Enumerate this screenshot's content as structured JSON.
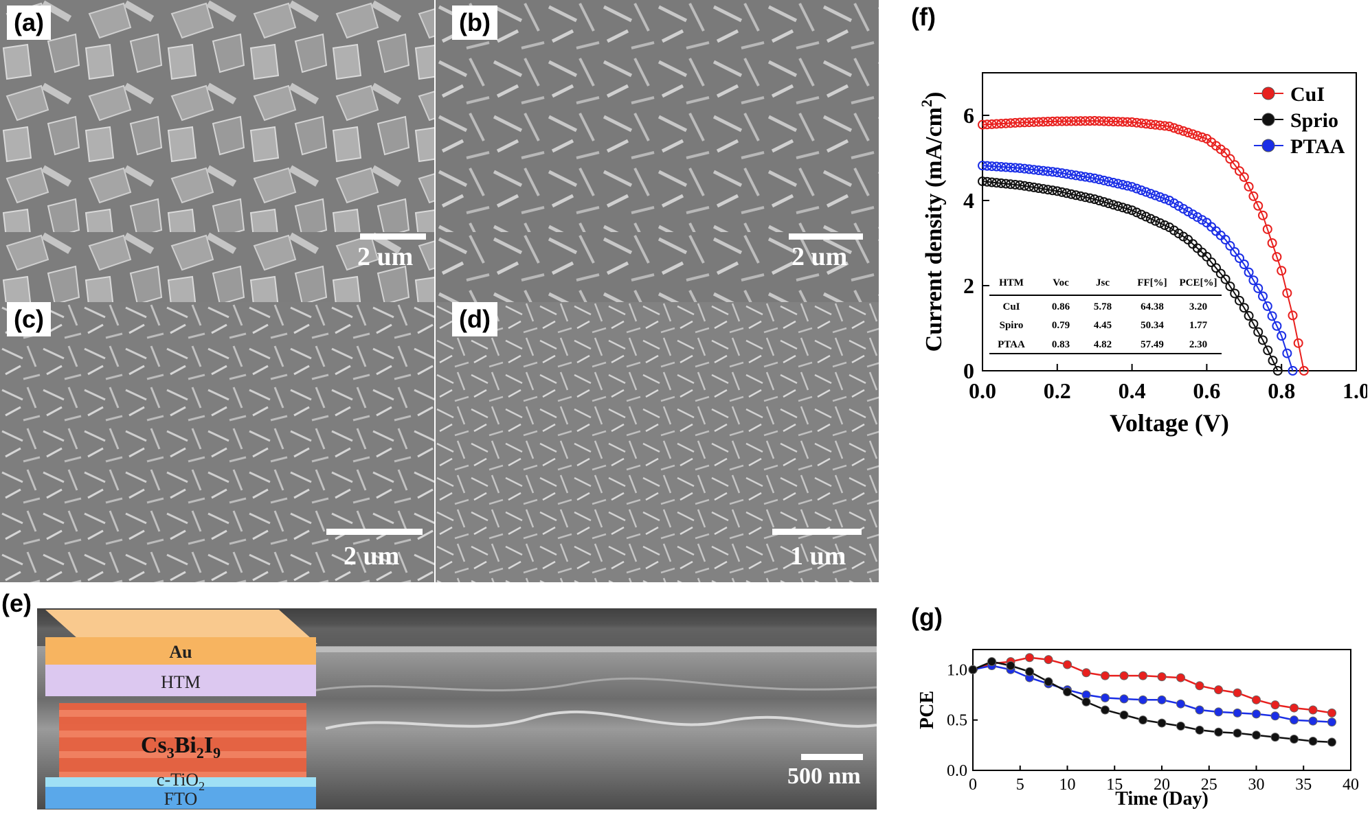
{
  "panels": {
    "a": {
      "label": "(a)",
      "scale": "2 um"
    },
    "b": {
      "label": "(b)",
      "scale": "2 um"
    },
    "c": {
      "label": "(c)",
      "scale": "2 um"
    },
    "d": {
      "label": "(d)",
      "scale": "1 um"
    },
    "e": {
      "label": "(e)",
      "scale": "500 nm",
      "layers": {
        "au": "Au",
        "htm": "HTM",
        "absorber_main": "Cs",
        "absorber_s1": "3",
        "absorber_mid": "Bi",
        "absorber_s2": "2",
        "absorber_end": "I",
        "absorber_s3": "9",
        "ctio2_main": "c-TiO",
        "ctio2_sub": "2",
        "fto": "FTO"
      }
    },
    "f": {
      "label": "(f)"
    },
    "g": {
      "label": "(g)"
    }
  },
  "colors": {
    "cui": "#e8201e",
    "spiro": "#111111",
    "ptaa": "#1a2ee6",
    "au": "#f7b460",
    "htm": "#dcc8f0",
    "absorber": "#e9613f",
    "ctio2": "#9fe0f5",
    "fto": "#5aa8ea"
  },
  "chart_data": [
    {
      "id": "f",
      "type": "line",
      "xlabel": "Voltage (V)",
      "ylabel_main": "Current density (mA/cm",
      "ylabel_sup": "2",
      "ylabel_end": ")",
      "xlim": [
        0,
        1.0
      ],
      "ylim": [
        0,
        7
      ],
      "xticks": [
        "0.0",
        "0.2",
        "0.4",
        "0.6",
        "0.8",
        "1.0"
      ],
      "yticks": [
        "0",
        "2",
        "4",
        "6"
      ],
      "legend_position": "top-right",
      "series": [
        {
          "name": "CuI",
          "color": "#e8201e",
          "jsc": 5.78,
          "voc": 0.86,
          "x": [
            0,
            0.1,
            0.2,
            0.3,
            0.4,
            0.5,
            0.6,
            0.65,
            0.7,
            0.75,
            0.8,
            0.83,
            0.86
          ],
          "y": [
            5.78,
            5.83,
            5.86,
            5.87,
            5.84,
            5.74,
            5.45,
            5.12,
            4.55,
            3.65,
            2.35,
            1.3,
            0
          ]
        },
        {
          "name": "Sprio",
          "color": "#111111",
          "jsc": 4.45,
          "voc": 0.79,
          "x": [
            0,
            0.1,
            0.2,
            0.3,
            0.4,
            0.5,
            0.55,
            0.6,
            0.65,
            0.7,
            0.75,
            0.79
          ],
          "y": [
            4.45,
            4.36,
            4.22,
            4.03,
            3.77,
            3.37,
            3.08,
            2.68,
            2.15,
            1.48,
            0.72,
            0
          ]
        },
        {
          "name": "PTAA",
          "color": "#1a2ee6",
          "jsc": 4.82,
          "voc": 0.83,
          "x": [
            0,
            0.1,
            0.2,
            0.3,
            0.4,
            0.5,
            0.6,
            0.65,
            0.7,
            0.75,
            0.8,
            0.83
          ],
          "y": [
            4.82,
            4.76,
            4.66,
            4.52,
            4.32,
            4.0,
            3.48,
            3.08,
            2.5,
            1.75,
            0.82,
            0
          ]
        }
      ],
      "table": {
        "headers": [
          "HTM",
          "Voc",
          "Jsc",
          "FF[%]",
          "PCE[%]"
        ],
        "rows": [
          [
            "CuI",
            "0.86",
            "5.78",
            "64.38",
            "3.20"
          ],
          [
            "Spiro",
            "0.79",
            "4.45",
            "50.34",
            "1.77"
          ],
          [
            "PTAA",
            "0.83",
            "4.82",
            "57.49",
            "2.30"
          ]
        ]
      }
    },
    {
      "id": "g",
      "type": "line",
      "xlabel": "Time (Day)",
      "ylabel": "PCE",
      "xlim": [
        0,
        40
      ],
      "ylim": [
        0,
        1.2
      ],
      "xticks": [
        "0",
        "5",
        "10",
        "15",
        "20",
        "25",
        "30",
        "35",
        "40"
      ],
      "yticks": [
        "0.0",
        "0.5",
        "1.0"
      ],
      "series": [
        {
          "color": "#e8201e",
          "x": [
            0,
            2,
            4,
            6,
            8,
            10,
            12,
            14,
            16,
            18,
            20,
            22,
            24,
            26,
            28,
            30,
            32,
            34,
            36,
            38
          ],
          "y": [
            1.0,
            1.06,
            1.08,
            1.12,
            1.1,
            1.05,
            0.97,
            0.94,
            0.94,
            0.94,
            0.93,
            0.92,
            0.84,
            0.8,
            0.77,
            0.7,
            0.65,
            0.62,
            0.6,
            0.57
          ]
        },
        {
          "color": "#1a2ee6",
          "x": [
            0,
            2,
            4,
            6,
            8,
            10,
            12,
            14,
            16,
            18,
            20,
            22,
            24,
            26,
            28,
            30,
            32,
            34,
            36,
            38
          ],
          "y": [
            1.0,
            1.04,
            1.0,
            0.92,
            0.86,
            0.8,
            0.75,
            0.72,
            0.71,
            0.7,
            0.7,
            0.66,
            0.6,
            0.58,
            0.57,
            0.56,
            0.54,
            0.5,
            0.49,
            0.48
          ]
        },
        {
          "color": "#111111",
          "x": [
            0,
            2,
            4,
            6,
            8,
            10,
            12,
            14,
            16,
            18,
            20,
            22,
            24,
            26,
            28,
            30,
            32,
            34,
            36,
            38
          ],
          "y": [
            1.0,
            1.08,
            1.04,
            0.98,
            0.88,
            0.78,
            0.68,
            0.6,
            0.55,
            0.5,
            0.47,
            0.44,
            0.4,
            0.38,
            0.37,
            0.35,
            0.33,
            0.31,
            0.29,
            0.28
          ]
        }
      ]
    }
  ]
}
